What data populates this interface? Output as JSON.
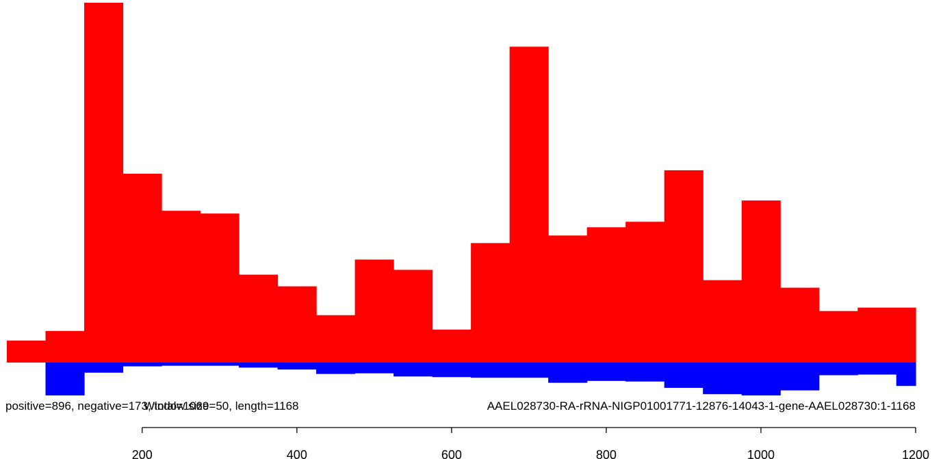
{
  "chart_data": {
    "type": "bar",
    "description_labels": {
      "left": "positive=896, negative=173, total=1069",
      "middle": "Window size=50, length=1168",
      "right": "AAEL028730-RA-rRNA-NIGP01001771-12876-14043-1-gene-AAEL028730:1-1168"
    },
    "xlim": [
      25,
      1200
    ],
    "bin_width": 50,
    "x_ticks": [
      200,
      400,
      600,
      800,
      1000,
      1200
    ],
    "bin_starts": [
      25,
      75,
      125,
      175,
      225,
      275,
      325,
      375,
      425,
      475,
      525,
      575,
      625,
      675,
      725,
      775,
      825,
      875,
      925,
      975,
      1025,
      1075,
      1125,
      1175
    ],
    "series": [
      {
        "name": "positive",
        "color": "#ff0000",
        "values": [
          32,
          46,
          524,
          275,
          221,
          217,
          128,
          111,
          69,
          150,
          135,
          48,
          174,
          460,
          185,
          197,
          205,
          280,
          120,
          236,
          109,
          75,
          80,
          80
        ]
      },
      {
        "name": "negative",
        "color": "#0000ff",
        "values": [
          0,
          52,
          16,
          6,
          5,
          5,
          8,
          11,
          18,
          17,
          22,
          23,
          24,
          24,
          32,
          29,
          30,
          40,
          50,
          52,
          44,
          20,
          19,
          37
        ]
      }
    ],
    "positive_max": 524,
    "negative_scale_max": 80,
    "grid": false,
    "legend": "none"
  },
  "colors": {
    "positive": "#ff0000",
    "negative": "#0000ff",
    "axis": "#000000"
  }
}
